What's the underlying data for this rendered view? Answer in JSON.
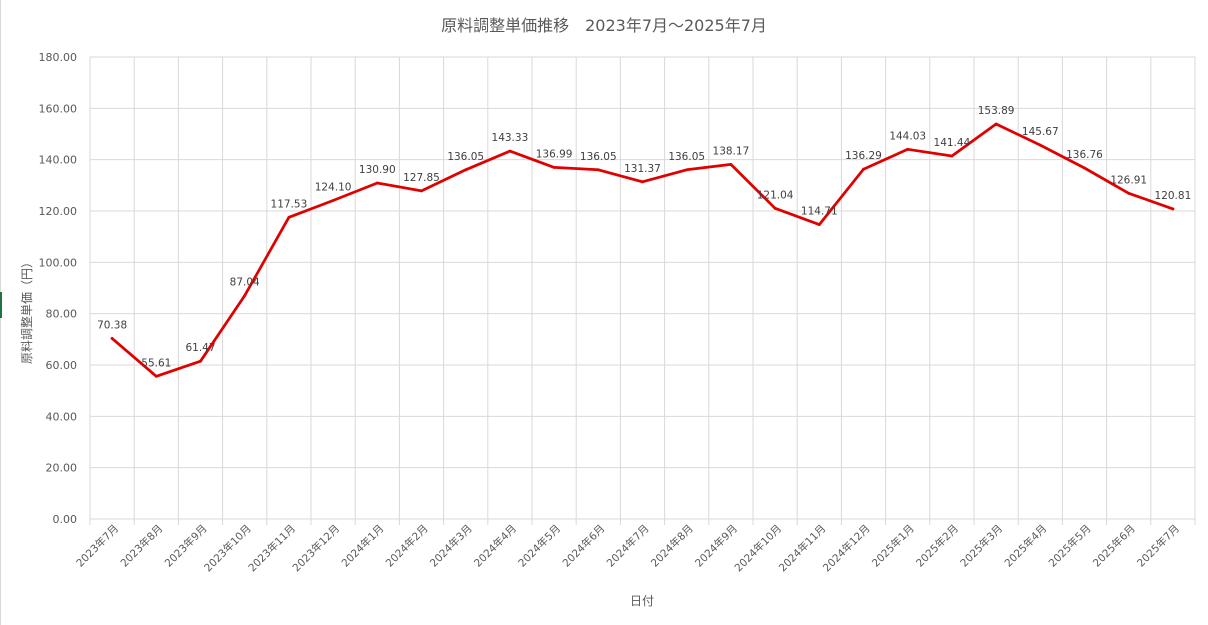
{
  "chart_data": {
    "type": "line",
    "title": "原料調整単価推移　2023年7月～2025年7月",
    "xlabel": "日付",
    "ylabel": "原料調整単価（円）",
    "ylim": [
      0,
      180
    ],
    "yticks": [
      "0.00",
      "20.00",
      "40.00",
      "60.00",
      "80.00",
      "100.00",
      "120.00",
      "140.00",
      "160.00",
      "180.00"
    ],
    "categories": [
      "2023年7月",
      "2023年8月",
      "2023年9月",
      "2023年10月",
      "2023年11月",
      "2023年12月",
      "2024年1月",
      "2024年2月",
      "2024年3月",
      "2024年4月",
      "2024年5月",
      "2024年6月",
      "2024年7月",
      "2024年8月",
      "2024年9月",
      "2024年10月",
      "2024年11月",
      "2024年12月",
      "2025年1月",
      "2025年2月",
      "2025年3月",
      "2025年4月",
      "2025年5月",
      "2025年6月",
      "2025年7月"
    ],
    "values": [
      70.38,
      55.61,
      61.47,
      87.04,
      117.53,
      124.1,
      130.9,
      127.85,
      136.05,
      143.33,
      136.99,
      136.05,
      131.37,
      136.05,
      138.17,
      121.04,
      114.71,
      136.29,
      144.03,
      141.44,
      153.89,
      145.67,
      136.76,
      126.91,
      120.81
    ],
    "data_labels": [
      "70.38",
      "55.61",
      "61.47",
      "87.04",
      "117.53",
      "124.10",
      "130.90",
      "127.85",
      "136.05",
      "143.33",
      "136.99",
      "136.05",
      "131.37",
      "136.05",
      "138.17",
      "121.04",
      "114.71",
      "136.29",
      "144.03",
      "141.44",
      "153.89",
      "145.67",
      "136.76",
      "126.91",
      "120.81"
    ],
    "grid": true,
    "legend": "none",
    "line_color": "#e00000",
    "grid_color": "#d9d9d9",
    "text_color": "#404040",
    "axis_text_color": "#595959"
  }
}
